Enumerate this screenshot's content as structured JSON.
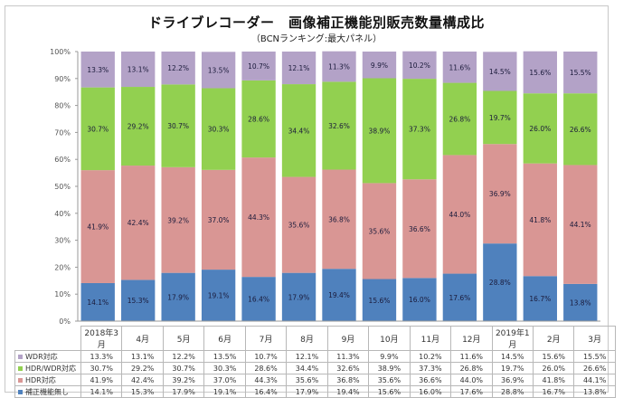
{
  "chart_data": {
    "type": "bar",
    "stacked": true,
    "title": "ドライブレコーダー　画像補正機能別販売数量構成比",
    "subtitle": "（BCNランキング:最大パネル）",
    "xlabel": "",
    "ylabel": "",
    "ylim": [
      0,
      100
    ],
    "yticks": [
      "0%",
      "10%",
      "20%",
      "30%",
      "40%",
      "50%",
      "60%",
      "70%",
      "80%",
      "90%",
      "100%"
    ],
    "grid": false,
    "legend": "table-below",
    "categories": [
      "2018年3月",
      "4月",
      "5月",
      "6月",
      "7月",
      "8月",
      "9月",
      "10月",
      "11月",
      "12月",
      "2019年1月",
      "2月",
      "3月"
    ],
    "series": [
      {
        "name": "補正機能無し",
        "color": "#4f81bd",
        "values": [
          14.1,
          15.3,
          17.9,
          19.1,
          16.4,
          17.9,
          19.4,
          15.6,
          16.0,
          17.6,
          28.8,
          16.7,
          13.8
        ]
      },
      {
        "name": "HDR対応",
        "color": "#d99694",
        "values": [
          41.9,
          42.4,
          39.2,
          37.0,
          44.3,
          35.6,
          36.8,
          35.6,
          36.6,
          44.0,
          36.9,
          41.8,
          44.1
        ]
      },
      {
        "name": "HDR/WDR対応",
        "color": "#92d050",
        "values": [
          30.7,
          29.2,
          30.7,
          30.3,
          28.6,
          34.4,
          32.6,
          38.9,
          37.3,
          26.8,
          19.7,
          26.0,
          26.6
        ]
      },
      {
        "name": "WDR対応",
        "color": "#b3a2c7",
        "values": [
          13.3,
          13.1,
          12.2,
          13.5,
          10.7,
          12.1,
          11.3,
          9.9,
          10.2,
          11.6,
          14.5,
          15.6,
          15.5
        ]
      }
    ]
  },
  "table": {
    "rows_order": [
      3,
      2,
      1,
      0
    ]
  }
}
